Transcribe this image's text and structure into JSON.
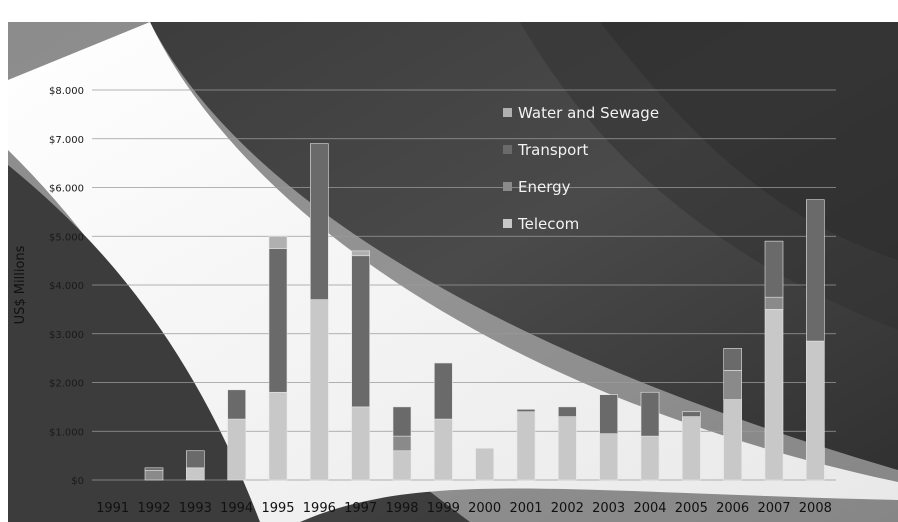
{
  "chart_data": {
    "type": "bar",
    "stacked": true,
    "ylabel": "US$ Millions",
    "xlabel": "",
    "ylim": [
      0,
      8000
    ],
    "y_ticks": [
      0,
      1000,
      2000,
      3000,
      4000,
      5000,
      6000,
      7000,
      8000
    ],
    "y_tick_labels": [
      "$0",
      "$1.000",
      "$2.000",
      "$3.000",
      "$4.000",
      "$5.000",
      "$6.000",
      "$7.000",
      "$8.000"
    ],
    "grid": true,
    "legend_position": "top-right",
    "categories": [
      "1991",
      "1992",
      "1993",
      "1994",
      "1995",
      "1996",
      "1997",
      "1998",
      "1999",
      "2000",
      "2001",
      "2002",
      "2003",
      "2004",
      "2005",
      "2006",
      "2007",
      "2008"
    ],
    "series": [
      {
        "name": "Telecom",
        "color": "#c8c8c8",
        "values": [
          0,
          0,
          250,
          1250,
          1800,
          3700,
          1500,
          600,
          1250,
          650,
          1400,
          1300,
          950,
          900,
          1300,
          1650,
          3500,
          2850
        ]
      },
      {
        "name": "Energy",
        "color": "#8a8a8a",
        "values": [
          0,
          200,
          0,
          0,
          0,
          0,
          0,
          300,
          0,
          0,
          0,
          0,
          0,
          0,
          0,
          600,
          250,
          0
        ]
      },
      {
        "name": "Transport",
        "color": "#6a6a6a",
        "values": [
          0,
          50,
          350,
          600,
          2950,
          3200,
          3100,
          600,
          1150,
          0,
          50,
          200,
          800,
          900,
          100,
          450,
          1150,
          2900
        ]
      },
      {
        "name": "Water and Sewage",
        "color": "#b0b0b0",
        "values": [
          0,
          0,
          0,
          0,
          250,
          0,
          100,
          0,
          0,
          0,
          0,
          0,
          0,
          0,
          0,
          0,
          0,
          0
        ]
      }
    ],
    "legend_order": [
      "Water and Sewage",
      "Transport",
      "Energy",
      "Telecom"
    ]
  }
}
